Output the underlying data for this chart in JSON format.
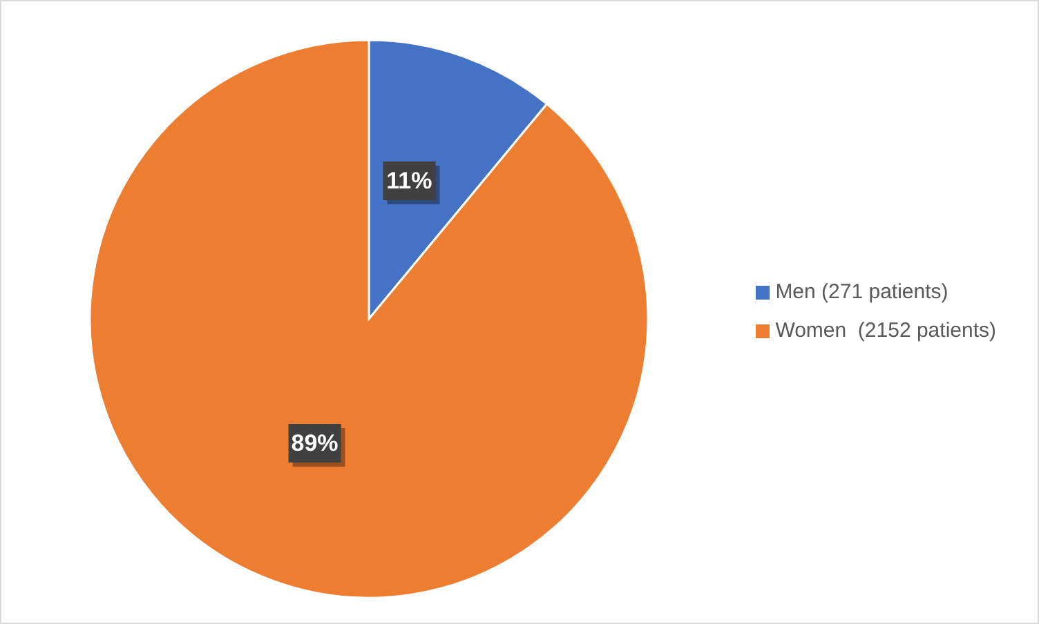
{
  "chart_data": {
    "type": "pie",
    "categories": [
      "Men (271 patients)",
      "Women  (2152 patients)"
    ],
    "values": [
      11,
      89
    ],
    "colors": [
      "#4472c4",
      "#ed7d31"
    ],
    "value_labels": [
      "11%",
      "89%"
    ],
    "legend": "right"
  }
}
